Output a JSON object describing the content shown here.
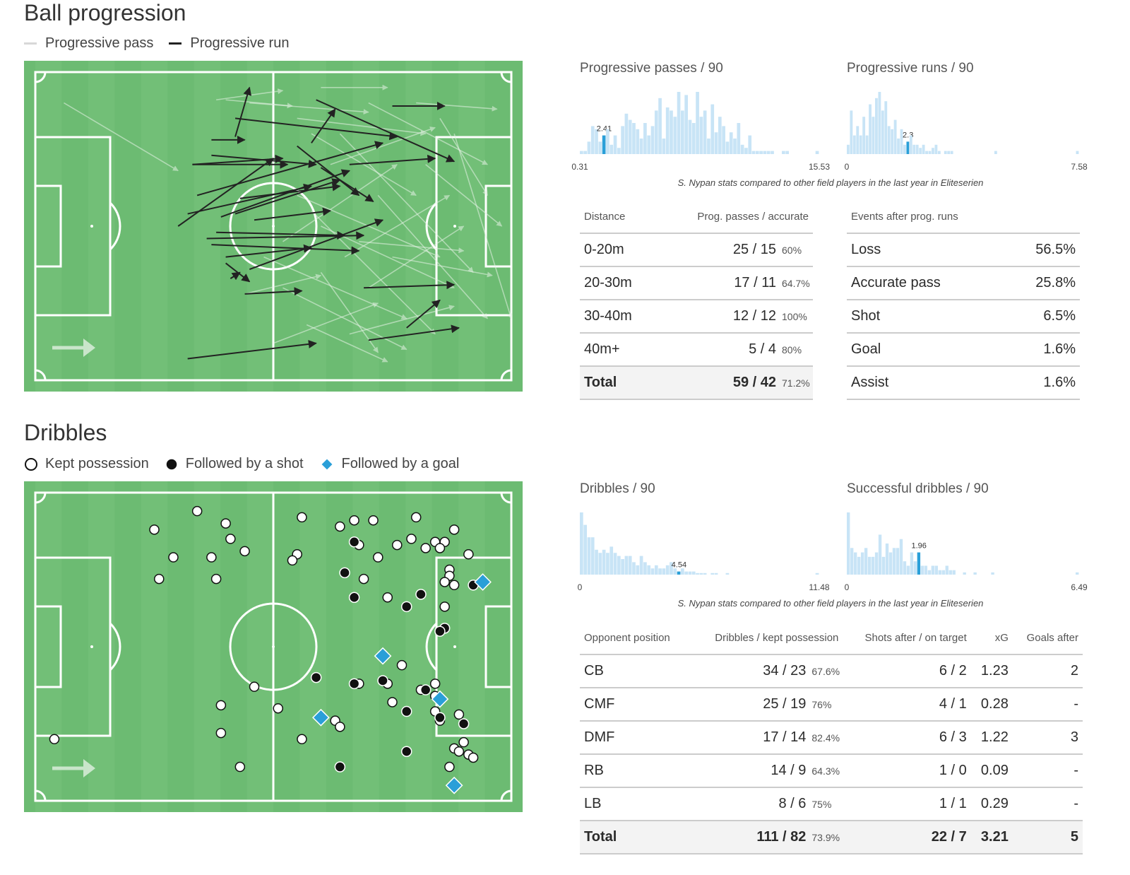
{
  "ball_progression": {
    "title": "Ball progression",
    "legend": [
      {
        "label": "Progressive pass",
        "color": "#d8d8d8"
      },
      {
        "label": "Progressive run",
        "color": "#222222"
      }
    ]
  },
  "dribbles": {
    "title": "Dribbles",
    "legend": [
      {
        "label": "Kept possession",
        "marker": "open-circle"
      },
      {
        "label": "Followed by a shot",
        "marker": "filled-circle"
      },
      {
        "label": "Followed by a goal",
        "marker": "blue-diamond"
      }
    ]
  },
  "colors": {
    "pitch_green": "#6cbb72",
    "pitch_stripe": "#77c27c",
    "hist_bar": "#c8e4f6",
    "hist_highlight": "#2a9fd8",
    "goal_diamond": "#2a9fd8"
  },
  "caption": "S. Nypan stats compared to other field players in the last year in Eliteserien",
  "chart_data": [
    {
      "type": "bar",
      "title": "Progressive passes / 90",
      "x_min_label": "0.31",
      "x_max_label": "15.53",
      "highlight_label": "2.41",
      "highlight_index": 6,
      "values": [
        1,
        1,
        4,
        9,
        8,
        4,
        6,
        8,
        3,
        6,
        2,
        9,
        13,
        11,
        10,
        8,
        5,
        10,
        6,
        9,
        14,
        18,
        5,
        15,
        14,
        12,
        20,
        14,
        19,
        11,
        10,
        20,
        12,
        14,
        5,
        16,
        7,
        12,
        9,
        4,
        7,
        5,
        10,
        3,
        2,
        6,
        1,
        1,
        1,
        1,
        1,
        1,
        0,
        0,
        1,
        1,
        0,
        0,
        0,
        0,
        0,
        0,
        0,
        1
      ]
    },
    {
      "type": "bar",
      "title": "Progressive runs / 90",
      "x_min_label": "0",
      "x_max_label": "7.58",
      "highlight_label": "2.3",
      "highlight_index": 19,
      "values": [
        3,
        14,
        6,
        9,
        6,
        12,
        6,
        16,
        12,
        18,
        20,
        14,
        17,
        9,
        8,
        11,
        5,
        8,
        3,
        4,
        6,
        3,
        3,
        2,
        3,
        1,
        1,
        2,
        3,
        1,
        0,
        1,
        1,
        1,
        0,
        0,
        0,
        0,
        0,
        0,
        0,
        0,
        0,
        0,
        0,
        0,
        0,
        1,
        0,
        0,
        0,
        0,
        0,
        0,
        0,
        0,
        0,
        0,
        0,
        0,
        0,
        0,
        0,
        0,
        0,
        0,
        0,
        0,
        0,
        0,
        0,
        0,
        0,
        1
      ]
    },
    {
      "type": "bar",
      "title": "Dribbles / 90",
      "x_min_label": "0",
      "x_max_label": "11.48",
      "highlight_label": "4.54",
      "highlight_index": 26,
      "values": [
        20,
        16,
        12,
        12,
        8,
        7,
        8,
        7,
        9,
        7,
        6,
        5,
        6,
        6,
        4,
        3,
        6,
        4,
        3,
        2,
        3,
        2,
        2,
        3,
        4,
        2,
        1,
        2,
        1,
        1,
        1,
        0.5,
        0.5,
        0.5,
        0,
        0.5,
        0.5,
        0,
        0,
        0.5,
        0,
        0,
        0,
        0,
        0,
        0,
        0,
        0,
        0,
        0,
        0,
        0,
        0,
        0,
        0,
        0,
        0,
        0,
        0,
        0,
        0,
        0,
        0,
        0.5
      ]
    },
    {
      "type": "bar",
      "title": "Successful dribbles / 90",
      "x_min_label": "0",
      "x_max_label": "6.49",
      "highlight_label": "1.96",
      "highlight_index": 20,
      "values": [
        14,
        6,
        5,
        4,
        5,
        6,
        4,
        4,
        5,
        9,
        4,
        7,
        5,
        6,
        6,
        8,
        3,
        2,
        5,
        3,
        5,
        2,
        2,
        1,
        2,
        2,
        1,
        1,
        2,
        1,
        1,
        0,
        0,
        0.5,
        0,
        0,
        0.5,
        0,
        0,
        0,
        0,
        0.5,
        0,
        0,
        0,
        0,
        0,
        0,
        0,
        0,
        0,
        0,
        0,
        0,
        0,
        0,
        0,
        0,
        0,
        0,
        0,
        0,
        0,
        0,
        0,
        0.5
      ]
    },
    {
      "type": "table",
      "headers": [
        "Distance",
        "Prog. passes / accurate"
      ],
      "rows": [
        {
          "label": "0-20m",
          "value": "25 / 15",
          "pct": "60%"
        },
        {
          "label": "20-30m",
          "value": "17 / 11",
          "pct": "64.7%"
        },
        {
          "label": "30-40m",
          "value": "12 / 12",
          "pct": "100%"
        },
        {
          "label": "40m+",
          "value": "5 / 4",
          "pct": "80%"
        }
      ],
      "total": {
        "label": "Total",
        "value": "59 / 42",
        "pct": "71.2%"
      }
    },
    {
      "type": "table",
      "headers": [
        "Events after prog. runs",
        ""
      ],
      "rows": [
        {
          "label": "Loss",
          "value": "56.5%"
        },
        {
          "label": "Accurate pass",
          "value": "25.8%"
        },
        {
          "label": "Shot",
          "value": "6.5%"
        },
        {
          "label": "Goal",
          "value": "1.6%"
        },
        {
          "label": "Assist",
          "value": "1.6%"
        }
      ]
    },
    {
      "type": "table",
      "headers": [
        "Opponent position",
        "Dribbles / kept possession",
        "Shots after / on target",
        "xG",
        "Goals after"
      ],
      "rows": [
        {
          "pos": "CB",
          "dribbles": "34 / 23",
          "pct": "67.6%",
          "shots": "6 / 2",
          "xg": "1.23",
          "goals": "2"
        },
        {
          "pos": "CMF",
          "dribbles": "25 / 19",
          "pct": "76%",
          "shots": "4 / 1",
          "xg": "0.28",
          "goals": "-"
        },
        {
          "pos": "DMF",
          "dribbles": "17 / 14",
          "pct": "82.4%",
          "shots": "6 / 3",
          "xg": "1.22",
          "goals": "3"
        },
        {
          "pos": "RB",
          "dribbles": "14 / 9",
          "pct": "64.3%",
          "shots": "1 / 0",
          "xg": "0.09",
          "goals": "-"
        },
        {
          "pos": "LB",
          "dribbles": "8 / 6",
          "pct": "75%",
          "shots": "1 / 1",
          "xg": "0.29",
          "goals": "-"
        }
      ],
      "total": {
        "pos": "Total",
        "dribbles": "111 / 82",
        "pct": "73.9%",
        "shots": "22 / 7",
        "xg": "3.21",
        "goals": "5"
      }
    },
    {
      "type": "scatter",
      "name": "progressive-runs",
      "x_range": [
        0,
        100
      ],
      "y_range": [
        0,
        100
      ],
      "segments": [
        [
          42,
          21,
          45,
          5
        ],
        [
          42,
          15,
          76,
          21
        ],
        [
          37,
          22,
          44,
          22
        ],
        [
          33,
          30,
          53,
          30
        ],
        [
          33,
          30,
          52,
          28
        ],
        [
          30,
          50,
          50,
          28
        ],
        [
          32,
          46,
          58,
          37
        ],
        [
          34,
          40,
          73,
          23
        ],
        [
          37,
          27,
          59,
          30
        ],
        [
          39,
          47,
          66,
          32
        ],
        [
          42,
          46,
          64,
          35
        ],
        [
          46,
          48,
          62,
          45
        ],
        [
          43,
          41,
          64,
          37
        ],
        [
          38,
          52,
          65,
          53
        ],
        [
          37,
          56,
          68,
          58
        ],
        [
          36,
          54,
          69,
          53
        ],
        [
          40,
          60,
          58,
          57
        ],
        [
          41,
          67,
          43,
          65
        ],
        [
          45,
          64,
          73,
          48
        ],
        [
          44,
          72,
          56,
          71
        ],
        [
          55,
          24,
          68,
          40
        ],
        [
          58,
          23,
          63,
          12
        ],
        [
          60,
          31,
          71,
          42
        ],
        [
          66,
          30,
          84,
          28
        ],
        [
          69,
          70,
          88,
          69
        ],
        [
          70,
          87,
          89,
          83
        ],
        [
          78,
          83,
          85,
          74
        ],
        [
          59,
          9,
          88,
          29
        ],
        [
          75,
          11,
          86,
          11
        ],
        [
          32,
          93,
          59,
          88
        ],
        [
          40,
          62,
          45,
          68
        ]
      ]
    },
    {
      "type": "scatter",
      "name": "progressive-passes",
      "x_range": [
        0,
        100
      ],
      "y_range": [
        0,
        100
      ],
      "segments": [
        [
          6,
          10,
          30,
          32
        ],
        [
          38,
          9,
          52,
          6
        ],
        [
          40,
          9,
          54,
          11
        ],
        [
          60,
          5,
          74,
          5
        ],
        [
          45,
          10,
          70,
          13
        ],
        [
          55,
          15,
          82,
          20
        ],
        [
          58,
          20,
          80,
          40
        ],
        [
          62,
          30,
          84,
          18
        ],
        [
          55,
          40,
          85,
          60
        ],
        [
          60,
          50,
          88,
          70
        ],
        [
          65,
          60,
          87,
          40
        ],
        [
          70,
          70,
          90,
          50
        ],
        [
          48,
          60,
          78,
          80
        ],
        [
          52,
          70,
          78,
          90
        ],
        [
          66,
          85,
          88,
          76
        ],
        [
          50,
          88,
          72,
          75
        ],
        [
          58,
          45,
          84,
          85
        ],
        [
          64,
          20,
          92,
          65
        ],
        [
          70,
          10,
          95,
          30
        ],
        [
          72,
          40,
          95,
          80
        ],
        [
          52,
          55,
          76,
          30
        ],
        [
          44,
          72,
          60,
          66
        ],
        [
          68,
          55,
          90,
          58
        ],
        [
          80,
          10,
          97,
          12
        ],
        [
          82,
          30,
          98,
          50
        ],
        [
          85,
          15,
          95,
          40
        ],
        [
          75,
          60,
          96,
          66
        ],
        [
          57,
          82,
          74,
          94
        ],
        [
          60,
          65,
          72,
          91
        ],
        [
          88,
          20,
          100,
          80
        ]
      ]
    },
    {
      "type": "scatter",
      "name": "dribble-events",
      "x_range": [
        0,
        100
      ],
      "y_range": [
        0,
        100
      ],
      "points": [
        {
          "x": 34,
          "y": 6,
          "kind": "kept"
        },
        {
          "x": 25,
          "y": 12,
          "kind": "kept"
        },
        {
          "x": 40,
          "y": 10,
          "kind": "kept"
        },
        {
          "x": 41,
          "y": 15,
          "kind": "kept"
        },
        {
          "x": 44,
          "y": 19,
          "kind": "kept"
        },
        {
          "x": 29,
          "y": 21,
          "kind": "kept"
        },
        {
          "x": 37,
          "y": 21,
          "kind": "kept"
        },
        {
          "x": 26,
          "y": 28,
          "kind": "kept"
        },
        {
          "x": 38,
          "y": 28,
          "kind": "kept"
        },
        {
          "x": 56,
          "y": 8,
          "kind": "kept"
        },
        {
          "x": 55,
          "y": 20,
          "kind": "kept"
        },
        {
          "x": 54,
          "y": 22,
          "kind": "kept"
        },
        {
          "x": 64,
          "y": 11,
          "kind": "kept"
        },
        {
          "x": 67,
          "y": 9,
          "kind": "kept"
        },
        {
          "x": 71,
          "y": 9,
          "kind": "kept"
        },
        {
          "x": 80,
          "y": 8,
          "kind": "kept"
        },
        {
          "x": 88,
          "y": 12,
          "kind": "kept"
        },
        {
          "x": 79,
          "y": 15,
          "kind": "kept"
        },
        {
          "x": 76,
          "y": 17,
          "kind": "kept"
        },
        {
          "x": 82,
          "y": 18,
          "kind": "kept"
        },
        {
          "x": 84,
          "y": 16,
          "kind": "kept"
        },
        {
          "x": 86,
          "y": 16,
          "kind": "kept"
        },
        {
          "x": 85,
          "y": 18,
          "kind": "kept"
        },
        {
          "x": 91,
          "y": 20,
          "kind": "kept"
        },
        {
          "x": 68,
          "y": 17,
          "kind": "kept"
        },
        {
          "x": 72,
          "y": 21,
          "kind": "kept"
        },
        {
          "x": 69,
          "y": 28,
          "kind": "kept"
        },
        {
          "x": 87,
          "y": 25,
          "kind": "kept"
        },
        {
          "x": 87,
          "y": 27,
          "kind": "kept"
        },
        {
          "x": 86,
          "y": 29,
          "kind": "kept"
        },
        {
          "x": 88,
          "y": 30,
          "kind": "kept"
        },
        {
          "x": 74,
          "y": 34,
          "kind": "kept"
        },
        {
          "x": 86,
          "y": 37,
          "kind": "kept"
        },
        {
          "x": 77,
          "y": 56,
          "kind": "kept"
        },
        {
          "x": 68,
          "y": 62,
          "kind": "kept"
        },
        {
          "x": 74,
          "y": 62,
          "kind": "kept"
        },
        {
          "x": 46,
          "y": 63,
          "kind": "kept"
        },
        {
          "x": 81,
          "y": 64,
          "kind": "kept"
        },
        {
          "x": 84,
          "y": 62,
          "kind": "kept"
        },
        {
          "x": 84,
          "y": 66,
          "kind": "kept"
        },
        {
          "x": 39,
          "y": 69,
          "kind": "kept"
        },
        {
          "x": 51,
          "y": 70,
          "kind": "kept"
        },
        {
          "x": 75,
          "y": 68,
          "kind": "kept"
        },
        {
          "x": 84,
          "y": 71,
          "kind": "kept"
        },
        {
          "x": 89,
          "y": 72,
          "kind": "kept"
        },
        {
          "x": 63,
          "y": 74,
          "kind": "kept"
        },
        {
          "x": 64,
          "y": 76,
          "kind": "kept"
        },
        {
          "x": 85,
          "y": 74,
          "kind": "kept"
        },
        {
          "x": 39,
          "y": 78,
          "kind": "kept"
        },
        {
          "x": 56,
          "y": 80,
          "kind": "kept"
        },
        {
          "x": 90,
          "y": 81,
          "kind": "kept"
        },
        {
          "x": 88,
          "y": 83,
          "kind": "kept"
        },
        {
          "x": 89,
          "y": 84,
          "kind": "kept"
        },
        {
          "x": 91,
          "y": 85,
          "kind": "kept"
        },
        {
          "x": 92,
          "y": 86,
          "kind": "kept"
        },
        {
          "x": 87,
          "y": 89,
          "kind": "kept"
        },
        {
          "x": 43,
          "y": 89,
          "kind": "kept"
        },
        {
          "x": 4,
          "y": 80,
          "kind": "kept"
        },
        {
          "x": 67,
          "y": 16,
          "kind": "shot"
        },
        {
          "x": 65,
          "y": 26,
          "kind": "shot"
        },
        {
          "x": 67,
          "y": 34,
          "kind": "shot"
        },
        {
          "x": 81,
          "y": 33,
          "kind": "shot"
        },
        {
          "x": 78,
          "y": 37,
          "kind": "shot"
        },
        {
          "x": 86,
          "y": 44,
          "kind": "shot"
        },
        {
          "x": 85,
          "y": 45,
          "kind": "shot"
        },
        {
          "x": 92,
          "y": 30,
          "kind": "shot"
        },
        {
          "x": 59,
          "y": 60,
          "kind": "shot"
        },
        {
          "x": 67,
          "y": 62,
          "kind": "shot"
        },
        {
          "x": 73,
          "y": 61,
          "kind": "shot"
        },
        {
          "x": 82,
          "y": 64,
          "kind": "shot"
        },
        {
          "x": 78,
          "y": 71,
          "kind": "shot"
        },
        {
          "x": 85,
          "y": 73,
          "kind": "shot"
        },
        {
          "x": 90,
          "y": 75,
          "kind": "shot"
        },
        {
          "x": 78,
          "y": 84,
          "kind": "shot"
        },
        {
          "x": 64,
          "y": 89,
          "kind": "shot"
        },
        {
          "x": 94,
          "y": 29,
          "kind": "goal"
        },
        {
          "x": 73,
          "y": 53,
          "kind": "goal"
        },
        {
          "x": 85,
          "y": 67,
          "kind": "goal"
        },
        {
          "x": 60,
          "y": 73,
          "kind": "goal"
        },
        {
          "x": 88,
          "y": 95,
          "kind": "goal"
        }
      ]
    }
  ]
}
